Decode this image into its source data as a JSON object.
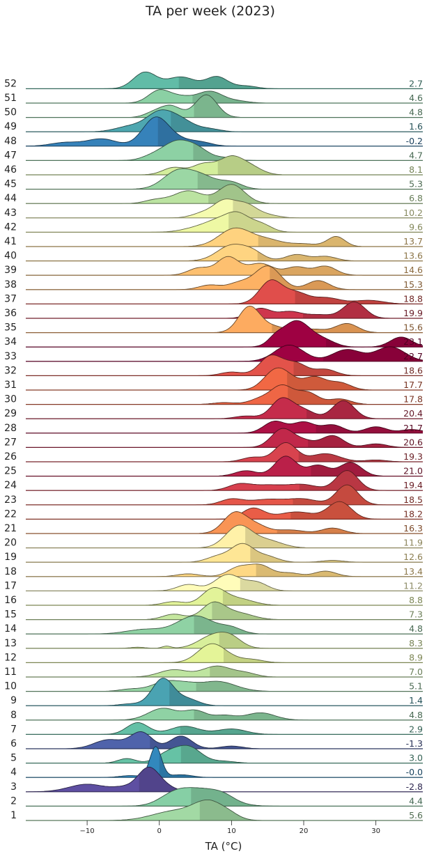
{
  "chart_data": {
    "type": "ridgeline",
    "title": "TA per week (2023)",
    "xlabel": "TA (°C)",
    "xlim": [
      -18.5,
      36.5
    ],
    "xticks": [
      -10,
      0,
      10,
      20,
      30
    ],
    "grid": false,
    "series": [
      {
        "week": "1",
        "mean": "5.6",
        "peaks": [
          [
            7,
            1.0,
            2.2
          ],
          [
            2,
            0.5,
            3
          ],
          [
            10,
            0.12,
            1.2
          ]
        ]
      },
      {
        "week": "2",
        "mean": "4.4",
        "peaks": [
          [
            6,
            0.9,
            3
          ],
          [
            2,
            0.5,
            2
          ],
          [
            9,
            0.2,
            1.5
          ]
        ]
      },
      {
        "week": "3",
        "mean": "-2.8",
        "peaks": [
          [
            -1.5,
            1.3,
            1.5
          ],
          [
            -10,
            0.42,
            2.5
          ],
          [
            -5,
            0.2,
            1.5
          ],
          [
            1,
            0.2,
            1.5
          ]
        ]
      },
      {
        "week": "4",
        "mean": "-0.0",
        "peaks": [
          [
            -0.5,
            1.7,
            0.8
          ],
          [
            -4,
            0.1,
            1.5
          ],
          [
            3,
            0.15,
            1.5
          ]
        ]
      },
      {
        "week": "5",
        "mean": "3.0",
        "peaks": [
          [
            4,
            0.9,
            1.8
          ],
          [
            -4.5,
            0.25,
            1.2
          ],
          [
            1,
            0.45,
            1.5
          ],
          [
            9,
            0.1,
            1.5
          ]
        ]
      },
      {
        "week": "6",
        "mean": "-1.3",
        "peaks": [
          [
            -2.5,
            0.9,
            1.5
          ],
          [
            -7,
            0.5,
            2
          ],
          [
            3,
            0.7,
            1.5
          ],
          [
            10,
            0.15,
            1.5
          ]
        ]
      },
      {
        "week": "7",
        "mean": "2.9",
        "peaks": [
          [
            -3,
            0.65,
            1.5
          ],
          [
            3.5,
            0.45,
            2
          ],
          [
            10,
            0.3,
            2
          ]
        ]
      },
      {
        "week": "8",
        "mean": "4.8",
        "peaks": [
          [
            0.5,
            0.65,
            2
          ],
          [
            5,
            0.5,
            1.5
          ],
          [
            14,
            0.4,
            2
          ],
          [
            9,
            0.25,
            1.5
          ]
        ]
      },
      {
        "week": "9",
        "mean": "1.4",
        "peaks": [
          [
            0.5,
            1.5,
            1.5
          ],
          [
            4,
            0.35,
            1.5
          ],
          [
            -4,
            0.1,
            1.5
          ]
        ]
      },
      {
        "week": "10",
        "mean": "5.1",
        "peaks": [
          [
            1,
            0.55,
            2
          ],
          [
            8,
            0.55,
            2.5
          ],
          [
            -4,
            0.12,
            1.5
          ],
          [
            4,
            0.2,
            1.5
          ]
        ]
      },
      {
        "week": "11",
        "mean": "7.0",
        "peaks": [
          [
            2,
            0.4,
            2
          ],
          [
            8,
            0.6,
            2
          ],
          [
            12,
            0.2,
            1.5
          ]
        ]
      },
      {
        "week": "12",
        "mean": "8.9",
        "peaks": [
          [
            7,
            0.85,
            1.8
          ],
          [
            9,
            0.3,
            2
          ],
          [
            13,
            0.15,
            1.5
          ]
        ]
      },
      {
        "week": "13",
        "mean": "8.3",
        "peaks": [
          [
            7.5,
            0.7,
            2
          ],
          [
            10,
            0.45,
            1.5
          ],
          [
            1,
            0.12,
            0.6
          ],
          [
            -3,
            0.06,
            1
          ]
        ]
      },
      {
        "week": "14",
        "mean": "4.8",
        "peaks": [
          [
            5,
            1.0,
            2.5
          ],
          [
            -2,
            0.25,
            2.5
          ],
          [
            10,
            0.3,
            1.5
          ]
        ]
      },
      {
        "week": "15",
        "mean": "7.3",
        "peaks": [
          [
            7.5,
            0.9,
            1.6
          ],
          [
            2,
            0.3,
            1.5
          ],
          [
            11,
            0.35,
            2
          ]
        ]
      },
      {
        "week": "16",
        "mean": "8.8",
        "peaks": [
          [
            7.5,
            0.9,
            1.6
          ],
          [
            2,
            0.2,
            1.5
          ],
          [
            11,
            0.35,
            2
          ]
        ]
      },
      {
        "week": "17",
        "mean": "11.2",
        "peaks": [
          [
            9.5,
            0.9,
            1.8
          ],
          [
            4,
            0.35,
            1.5
          ],
          [
            13.5,
            0.45,
            1.5
          ]
        ]
      },
      {
        "week": "18",
        "mean": "13.4",
        "peaks": [
          [
            11,
            0.5,
            1.5
          ],
          [
            4,
            0.15,
            1.5
          ],
          [
            14,
            0.6,
            1.5
          ],
          [
            23,
            0.3,
            1.5
          ],
          [
            18,
            0.2,
            1.5
          ]
        ]
      },
      {
        "week": "19",
        "mean": "12.6",
        "peaks": [
          [
            11.5,
            1.0,
            1.6
          ],
          [
            8,
            0.3,
            1.5
          ],
          [
            15,
            0.3,
            1.5
          ],
          [
            24,
            0.1,
            1.5
          ]
        ]
      },
      {
        "week": "20",
        "mean": "11.9",
        "peaks": [
          [
            11,
            1.2,
            1.8
          ],
          [
            15,
            0.4,
            2
          ]
        ]
      },
      {
        "week": "21",
        "mean": "16.3",
        "peaks": [
          [
            10.5,
            1.15,
            1.6
          ],
          [
            13.5,
            0.4,
            1.5
          ],
          [
            24,
            0.3,
            1.5
          ],
          [
            18,
            0.2,
            2
          ]
        ]
      },
      {
        "week": "22",
        "mean": "18.2",
        "peaks": [
          [
            13,
            0.6,
            1.5
          ],
          [
            19,
            0.4,
            2.5
          ],
          [
            25,
            0.95,
            1.6
          ]
        ]
      },
      {
        "week": "23",
        "mean": "18.5",
        "peaks": [
          [
            10,
            0.3,
            1.5
          ],
          [
            15,
            0.3,
            2.5
          ],
          [
            26,
            1.1,
            1.5
          ],
          [
            20,
            0.3,
            2
          ]
        ]
      },
      {
        "week": "24",
        "mean": "19.4",
        "peaks": [
          [
            11,
            0.3,
            1.5
          ],
          [
            15,
            0.3,
            2.5
          ],
          [
            26,
            1.1,
            1.5
          ],
          [
            20,
            0.3,
            2
          ]
        ]
      },
      {
        "week": "25",
        "mean": "21.0",
        "peaks": [
          [
            17.5,
            1.1,
            1.5
          ],
          [
            12,
            0.3,
            1.5
          ],
          [
            22,
            0.6,
            1.5
          ],
          [
            26.5,
            0.75,
            1.5
          ]
        ]
      },
      {
        "week": "26",
        "mean": "19.3",
        "peaks": [
          [
            17.5,
            1.05,
            1.5
          ],
          [
            13,
            0.25,
            1.5
          ],
          [
            23,
            0.45,
            2
          ],
          [
            30,
            0.1,
            1.5
          ]
        ]
      },
      {
        "week": "27",
        "mean": "20.6",
        "peaks": [
          [
            17,
            1.0,
            1.5
          ],
          [
            20,
            0.35,
            1.5
          ],
          [
            24,
            0.65,
            1.5
          ],
          [
            30,
            0.2,
            1.5
          ]
        ]
      },
      {
        "week": "28",
        "mean": "21.7",
        "peaks": [
          [
            16,
            0.65,
            1.5
          ],
          [
            20,
            0.6,
            1.5
          ],
          [
            24,
            0.45,
            1.5
          ],
          [
            30,
            0.35,
            1.5
          ],
          [
            35,
            0.2,
            1.5
          ]
        ]
      },
      {
        "week": "29",
        "mean": "20.4",
        "peaks": [
          [
            17,
            1.1,
            1.5
          ],
          [
            20,
            0.45,
            1.5
          ],
          [
            25.5,
            1.0,
            1.5
          ],
          [
            12,
            0.15,
            1.5
          ]
        ]
      },
      {
        "week": "30",
        "mean": "17.8",
        "peaks": [
          [
            17,
            1.0,
            1.5
          ],
          [
            14,
            0.3,
            1.5
          ],
          [
            20.5,
            0.65,
            1.5
          ],
          [
            25,
            0.3,
            1.5
          ],
          [
            9,
            0.1,
            1.5
          ]
        ]
      },
      {
        "week": "31",
        "mean": "17.7",
        "peaks": [
          [
            16,
            1.0,
            1.6
          ],
          [
            18,
            0.45,
            1.5
          ],
          [
            21.5,
            0.7,
            1.5
          ],
          [
            25,
            0.4,
            1.5
          ]
        ]
      },
      {
        "week": "32",
        "mean": "18.6",
        "peaks": [
          [
            15.5,
            1.1,
            1.6
          ],
          [
            19,
            0.65,
            1.5
          ],
          [
            23,
            0.35,
            1.5
          ],
          [
            10,
            0.2,
            1.5
          ]
        ]
      },
      {
        "week": "33",
        "mean": "22.7",
        "peaks": [
          [
            18,
            0.9,
            2
          ],
          [
            26,
            0.65,
            2
          ],
          [
            32,
            0.8,
            2
          ]
        ]
      },
      {
        "week": "34",
        "mean": "23.1",
        "peaks": [
          [
            19,
            1.45,
            2
          ],
          [
            23,
            0.3,
            1.5
          ],
          [
            33.5,
            0.55,
            1.5
          ],
          [
            16,
            0.3,
            1
          ]
        ]
      },
      {
        "week": "35",
        "mean": "15.6",
        "peaks": [
          [
            12.5,
            1.45,
            1.5
          ],
          [
            16,
            0.3,
            1.5
          ],
          [
            26,
            0.5,
            1.5
          ],
          [
            21,
            0.2,
            2
          ]
        ]
      },
      {
        "week": "36",
        "mean": "19.9",
        "peaks": [
          [
            14,
            0.55,
            1.5
          ],
          [
            18,
            0.35,
            1.5
          ],
          [
            27,
            0.9,
            1.5
          ],
          [
            22,
            0.2,
            2
          ]
        ]
      },
      {
        "week": "37",
        "mean": "18.8",
        "peaks": [
          [
            15.5,
            1.3,
            1.6
          ],
          [
            19,
            0.55,
            1.5
          ],
          [
            23,
            0.35,
            2
          ],
          [
            29,
            0.2,
            2
          ]
        ]
      },
      {
        "week": "38",
        "mean": "15.3",
        "peaks": [
          [
            15,
            1.3,
            1.8
          ],
          [
            7,
            0.25,
            1.5
          ],
          [
            11,
            0.35,
            1.5
          ],
          [
            22,
            0.5,
            1.5
          ]
        ]
      },
      {
        "week": "39",
        "mean": "14.6",
        "peaks": [
          [
            9.5,
            1.0,
            1.5
          ],
          [
            5.5,
            0.4,
            1.5
          ],
          [
            14,
            0.65,
            1.8
          ],
          [
            19,
            0.45,
            1.5
          ],
          [
            23,
            0.5,
            1.5
          ]
        ]
      },
      {
        "week": "40",
        "mean": "13.6",
        "peaks": [
          [
            10,
            0.85,
            2
          ],
          [
            13,
            0.4,
            1.5
          ],
          [
            19,
            0.35,
            1.5
          ],
          [
            23,
            0.25,
            1.5
          ]
        ]
      },
      {
        "week": "41",
        "mean": "13.7",
        "peaks": [
          [
            10.5,
            1.0,
            2.2
          ],
          [
            15,
            0.35,
            2
          ],
          [
            24.5,
            0.55,
            1.2
          ],
          [
            20,
            0.15,
            2
          ]
        ]
      },
      {
        "week": "42",
        "mean": "9.6",
        "peaks": [
          [
            8.5,
            0.65,
            2
          ],
          [
            11,
            0.75,
            1.5
          ],
          [
            14,
            0.45,
            1.5
          ],
          [
            5,
            0.2,
            2
          ]
        ]
      },
      {
        "week": "43",
        "mean": "10.2",
        "peaks": [
          [
            9,
            0.9,
            1.5
          ],
          [
            12,
            0.7,
            1.5
          ],
          [
            6,
            0.25,
            1.5
          ],
          [
            15,
            0.15,
            1.5
          ]
        ]
      },
      {
        "week": "44",
        "mean": "6.8",
        "peaks": [
          [
            4,
            0.7,
            2
          ],
          [
            10,
            1.05,
            1.8
          ],
          [
            -0.5,
            0.2,
            1.5
          ]
        ]
      },
      {
        "week": "45",
        "mean": "5.3",
        "peaks": [
          [
            2.5,
            0.95,
            2
          ],
          [
            6,
            0.65,
            2
          ],
          [
            10,
            0.35,
            1.5
          ]
        ]
      },
      {
        "week": "46",
        "mean": "8.1",
        "peaks": [
          [
            2,
            0.4,
            1.5
          ],
          [
            6,
            0.55,
            1.5
          ],
          [
            10,
            1.0,
            1.8
          ],
          [
            13,
            0.3,
            1.5
          ]
        ]
      },
      {
        "week": "47",
        "mean": "4.7",
        "peaks": [
          [
            2.5,
            1.05,
            2
          ],
          [
            5.5,
            0.45,
            1.5
          ],
          [
            -1,
            0.2,
            1.5
          ],
          [
            9,
            0.15,
            1.5
          ]
        ]
      },
      {
        "week": "48",
        "mean": "-0.2",
        "peaks": [
          [
            -0.5,
            1.55,
            1.8
          ],
          [
            -8,
            0.4,
            2
          ],
          [
            -13,
            0.2,
            2
          ],
          [
            3,
            0.3,
            2
          ],
          [
            6,
            0.15,
            1.5
          ]
        ]
      },
      {
        "week": "49",
        "mean": "1.6",
        "peaks": [
          [
            0,
            1.0,
            1.8
          ],
          [
            3,
            0.6,
            1.8
          ],
          [
            -4,
            0.3,
            2
          ],
          [
            7,
            0.15,
            1.5
          ]
        ]
      },
      {
        "week": "50",
        "mean": "4.8",
        "peaks": [
          [
            1.5,
            0.65,
            1.5
          ],
          [
            6.5,
            1.25,
            1.5
          ],
          [
            -1,
            0.2,
            1.2
          ]
        ]
      },
      {
        "week": "51",
        "mean": "4.6",
        "peaks": [
          [
            0,
            0.7,
            1.5
          ],
          [
            7,
            0.65,
            1.8
          ],
          [
            3,
            0.3,
            1.5
          ],
          [
            11,
            0.1,
            1.5
          ]
        ]
      },
      {
        "week": "52",
        "mean": "2.7",
        "peaks": [
          [
            -2,
            0.9,
            1.6
          ],
          [
            3,
            0.65,
            2
          ],
          [
            8,
            0.65,
            1.5
          ],
          [
            12,
            0.15,
            1.5
          ]
        ]
      }
    ]
  }
}
